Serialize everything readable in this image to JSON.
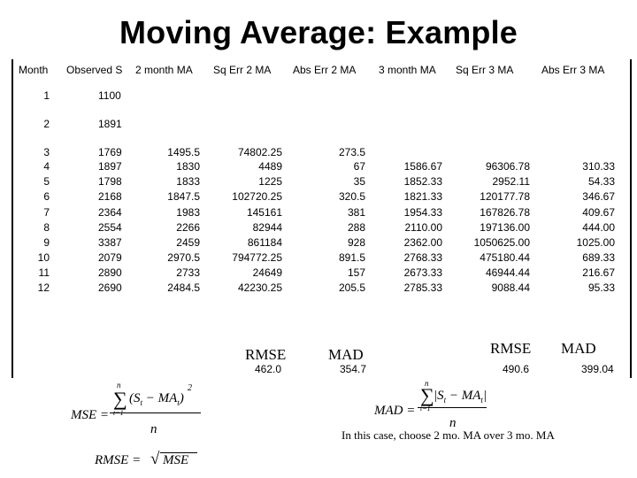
{
  "title": "Moving Average: Example",
  "headers": [
    "Month",
    "Observed S",
    "2 month MA",
    "Sq Err 2 MA",
    "Abs Err 2 MA",
    "3 month MA",
    "Sq Err 3 MA",
    "Abs Err 3 MA"
  ],
  "rows": [
    {
      "month": "1",
      "obs": "1100",
      "ma2": "",
      "sq2": "",
      "abs2": "",
      "ma3": "",
      "sq3": "",
      "abs3": ""
    },
    {
      "month": "2",
      "obs": "1891",
      "ma2": "",
      "sq2": "",
      "abs2": "",
      "ma3": "",
      "sq3": "",
      "abs3": ""
    },
    {
      "month": "3",
      "obs": "1769",
      "ma2": "1495.5",
      "sq2": "74802.25",
      "abs2": "273.5",
      "ma3": "",
      "sq3": "",
      "abs3": ""
    },
    {
      "month": "4",
      "obs": "1897",
      "ma2": "1830",
      "sq2": "4489",
      "abs2": "67",
      "ma3": "1586.67",
      "sq3": "96306.78",
      "abs3": "310.33"
    },
    {
      "month": "5",
      "obs": "1798",
      "ma2": "1833",
      "sq2": "1225",
      "abs2": "35",
      "ma3": "1852.33",
      "sq3": "2952.11",
      "abs3": "54.33"
    },
    {
      "month": "6",
      "obs": "2168",
      "ma2": "1847.5",
      "sq2": "102720.25",
      "abs2": "320.5",
      "ma3": "1821.33",
      "sq3": "120177.78",
      "abs3": "346.67"
    },
    {
      "month": "7",
      "obs": "2364",
      "ma2": "1983",
      "sq2": "145161",
      "abs2": "381",
      "ma3": "1954.33",
      "sq3": "167826.78",
      "abs3": "409.67"
    },
    {
      "month": "8",
      "obs": "2554",
      "ma2": "2266",
      "sq2": "82944",
      "abs2": "288",
      "ma3": "2110.00",
      "sq3": "197136.00",
      "abs3": "444.00"
    },
    {
      "month": "9",
      "obs": "3387",
      "ma2": "2459",
      "sq2": "861184",
      "abs2": "928",
      "ma3": "2362.00",
      "sq3": "1050625.00",
      "abs3": "1025.00"
    },
    {
      "month": "10",
      "obs": "2079",
      "ma2": "2970.5",
      "sq2": "794772.25",
      "abs2": "891.5",
      "ma3": "2768.33",
      "sq3": "475180.44",
      "abs3": "689.33"
    },
    {
      "month": "11",
      "obs": "2890",
      "ma2": "2733",
      "sq2": "24649",
      "abs2": "157",
      "ma3": "2673.33",
      "sq3": "46944.44",
      "abs3": "216.67"
    },
    {
      "month": "12",
      "obs": "2690",
      "ma2": "2484.5",
      "sq2": "42230.25",
      "abs2": "205.5",
      "ma3": "2785.33",
      "sq3": "9088.44",
      "abs3": "95.33"
    }
  ],
  "summary": {
    "rmse_label_2": "RMSE",
    "mad_label_2": "MAD",
    "rmse_2": "462.0",
    "mad_2": "354.7",
    "rmse_label_3": "RMSE",
    "mad_label_3": "MAD",
    "rmse_3": "490.6",
    "mad_3": "399.04"
  },
  "formulas": {
    "mse_lhs": "MSE =",
    "sum_top": "n",
    "sum_bottom": "t=1",
    "mse_term": "(S",
    "mse_term_sub": "t",
    "mse_minus": " − MA",
    "mse_close": ")",
    "sq_exponent": "2",
    "denominator": "n",
    "mad_lhs": "MAD =",
    "mad_term": "|S",
    "mad_close": "|",
    "rmse_lhs": "RMSE =",
    "rmse_inner": "MSE"
  },
  "note": "In this case, choose 2 mo. MA over 3 mo. MA"
}
